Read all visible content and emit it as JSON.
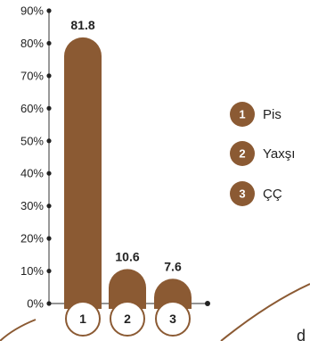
{
  "chart_data": {
    "type": "bar",
    "categories": [
      "1",
      "2",
      "3"
    ],
    "values": [
      81.8,
      10.6,
      7.6
    ],
    "value_labels": [
      "81.8",
      "10.6",
      "7.6"
    ],
    "ylim": [
      0,
      90
    ],
    "y_ticks": [
      "0%",
      "10%",
      "20%",
      "30%",
      "40%",
      "50%",
      "60%",
      "70%",
      "80%",
      "90%"
    ],
    "legend": [
      {
        "num": "1",
        "label": "Pis"
      },
      {
        "num": "2",
        "label": "Yaxşı"
      },
      {
        "num": "3",
        "label": "ÇÇ"
      }
    ],
    "legend_placement": "right",
    "grid": false,
    "bar_color": "#8B5A33",
    "axis_color": "#555555",
    "corner_text": "d"
  }
}
